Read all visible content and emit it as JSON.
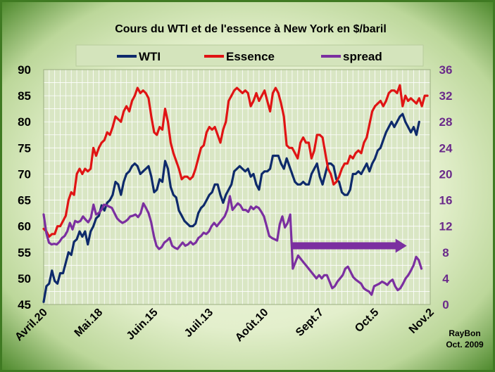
{
  "chart_data": {
    "type": "line",
    "title": "Cours du WTI et de l'essence à New York en $/baril",
    "credit": [
      "RayBon",
      "Oct. 2009"
    ],
    "x_tick_labels": [
      "Avril.20",
      "Mai.18",
      "Juin.15",
      "Juil.13",
      "Août.10",
      "Sept.7",
      "Oct.5",
      "Nov.2"
    ],
    "x_tick_positions": [
      0,
      20,
      40,
      60,
      80,
      100,
      120,
      140
    ],
    "xlim": [
      0,
      140
    ],
    "y_left": {
      "ylim": [
        45,
        90
      ],
      "ticks": [
        45,
        50,
        55,
        60,
        65,
        70,
        75,
        80,
        85,
        90
      ]
    },
    "y_right": {
      "ylim": [
        0,
        36
      ],
      "ticks": [
        0,
        4,
        8,
        12,
        16,
        20,
        24,
        28,
        32,
        36
      ]
    },
    "grid": true,
    "legend_position": "top",
    "series": [
      {
        "name": "WTI",
        "axis": "left",
        "color": "#0e2a6b",
        "values": [
          45.5,
          48.5,
          49,
          51.5,
          49.5,
          49,
          51,
          51,
          53,
          55,
          54.5,
          57,
          57.5,
          59,
          58,
          59,
          56.5,
          59,
          60,
          61.5,
          62,
          64,
          63,
          64.5,
          65,
          66,
          68.5,
          68,
          66,
          68.5,
          70,
          70.5,
          71.5,
          72,
          71.5,
          70,
          70.5,
          71,
          71.5,
          69.5,
          66.5,
          67,
          69,
          68.5,
          72.5,
          71,
          67.5,
          66,
          65.5,
          63,
          62,
          61,
          60.5,
          60,
          60,
          60.5,
          62.5,
          63.5,
          64,
          65,
          66,
          66.5,
          68,
          68,
          66,
          64.5,
          66,
          67,
          68,
          70.5,
          71,
          71.5,
          71,
          70.5,
          71,
          69.5,
          70,
          68,
          67,
          70,
          70.5,
          70.5,
          71,
          73.5,
          73.5,
          73.5,
          72,
          71,
          73,
          71.5,
          70,
          68.5,
          68,
          68,
          68.5,
          68,
          68,
          70,
          71,
          72,
          69.5,
          68,
          70,
          72,
          72,
          71.5,
          69,
          68.5,
          66.5,
          66,
          66,
          67,
          70,
          70,
          70.5,
          70,
          71,
          72,
          70.5,
          72,
          73,
          74.5,
          75,
          76.5,
          78,
          79,
          80,
          79,
          80,
          81,
          81.5,
          80,
          79,
          78,
          79,
          77.5,
          80
        ],
        "x_start": 0,
        "x_step": 1
      },
      {
        "name": "Essence",
        "axis": "left",
        "color": "#e01414",
        "values": [
          59.5,
          59,
          58,
          58.5,
          58.5,
          60,
          60,
          61,
          62,
          65,
          66.5,
          66,
          70,
          71,
          70,
          71,
          70.5,
          71,
          75,
          73.5,
          75,
          76,
          76.5,
          78,
          77.5,
          79,
          81,
          80.5,
          80,
          82,
          83,
          82,
          84,
          85,
          86.5,
          85.5,
          86,
          85.5,
          84.5,
          81,
          78,
          77.5,
          79,
          78.5,
          82.5,
          80,
          76,
          74,
          72.5,
          71,
          69,
          69.5,
          69.5,
          69,
          69.5,
          71,
          73,
          75,
          75.5,
          78,
          79,
          78.5,
          79,
          77.5,
          76,
          78.5,
          80,
          84,
          85,
          86,
          86.5,
          86,
          85.5,
          86,
          85.5,
          83,
          84,
          85.5,
          84,
          85,
          86,
          84,
          82,
          85.5,
          86.5,
          85.5,
          83.5,
          81,
          75.5,
          75,
          75,
          74,
          73,
          76,
          77,
          76,
          76,
          73,
          74.5,
          77.5,
          77.5,
          77,
          74,
          71,
          70,
          68,
          68.5,
          69.5,
          71,
          72,
          72,
          73.5,
          73,
          74,
          74.5,
          74,
          76,
          77,
          79.5,
          82,
          83,
          83.5,
          84,
          83,
          84,
          85.5,
          86,
          86,
          85.5,
          87,
          83,
          85,
          84,
          84.5,
          84,
          83.5,
          84.5,
          83,
          85,
          85
        ],
        "x_start": 0,
        "x_step": 1
      },
      {
        "name": "spread",
        "axis": "right",
        "color": "#7b2fa0",
        "values": [
          13.8,
          11,
          9.5,
          9.2,
          9.3,
          9.2,
          9.6,
          10.2,
          10.5,
          11.2,
          12.5,
          11.5,
          12.8,
          12.6,
          12.8,
          13.5,
          13,
          12.6,
          13.3,
          15.3,
          13.8,
          14,
          14.5,
          15.3,
          15.2,
          15,
          14.8,
          14,
          13.2,
          12.8,
          12.5,
          12.7,
          13,
          13.5,
          13.6,
          13.8,
          13.4,
          14,
          15.5,
          14.8,
          14,
          12.6,
          10.5,
          9,
          8.5,
          8.8,
          9.5,
          9.8,
          10.2,
          9,
          8.7,
          8.5,
          9,
          9.5,
          9,
          9.2,
          9.6,
          9.2,
          9.5,
          10.2,
          10.5,
          11,
          10.8,
          11.2,
          12,
          12.5,
          12,
          12.5,
          13,
          13.5,
          14.5,
          16.6,
          14.5,
          15,
          15.5,
          15.2,
          14.5,
          14.5,
          14.2,
          15,
          14.6,
          15,
          14.8,
          14.2,
          13.5,
          12,
          10.5,
          10.2,
          10,
          9.8,
          12.3,
          13.5,
          11.8,
          12.5,
          13.8,
          5.5,
          6.5,
          7.5,
          7,
          6.5,
          6,
          5.5,
          5,
          4.5,
          4,
          4.5,
          4,
          4.5,
          4.5,
          3.5,
          2.5,
          2.8,
          3.5,
          4,
          4.5,
          5.5,
          5.8,
          5,
          4.2,
          3.8,
          3.5,
          3.2,
          2.5,
          2.2,
          2,
          1.5,
          2.8,
          3,
          3.2,
          3.5,
          3.3,
          3,
          3.5,
          3.8,
          2.8,
          2.2,
          2.5,
          3.2,
          4,
          4.5,
          5.2,
          6,
          7.3,
          6.8,
          5.5
        ],
        "x_start": 0,
        "x_step": 0.95
      }
    ],
    "annotation_arrow": {
      "x_from": 90,
      "x_to": 131,
      "y_right": 9
    }
  }
}
